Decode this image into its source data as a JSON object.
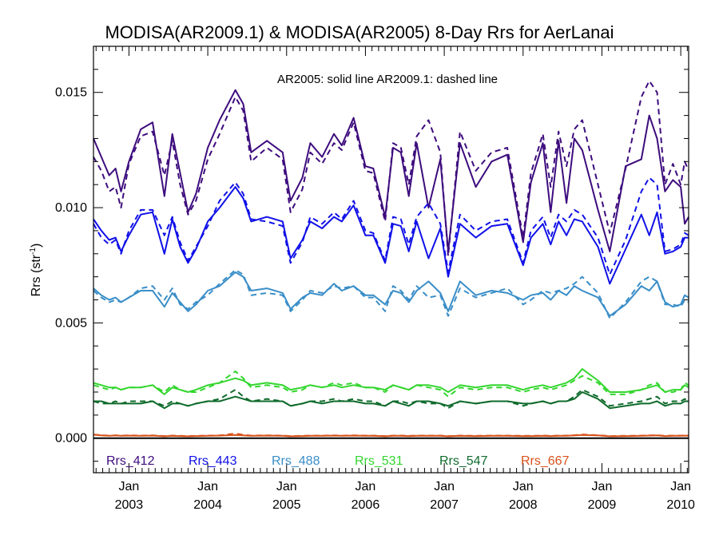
{
  "chart_data": {
    "type": "line",
    "title": "MODISA(AR2009.1) & MODISA(AR2005) 8-Day Rrs for AerLanai",
    "ylabel": "Rrs (str",
    "ylabel_sup": "-1",
    "ylabel_close": ")",
    "annotation": "AR2005: solid line   AR2009.1: dashed line",
    "xlim": [
      2002.55,
      2010.1
    ],
    "ylim": [
      -0.0015,
      0.017
    ],
    "yticks": [
      0.0,
      0.005,
      0.01,
      0.015
    ],
    "ytick_labels": [
      "0.000",
      "0.005",
      "0.010",
      "0.015"
    ],
    "xticks": [
      {
        "value": 2003.0,
        "month": "Jan",
        "year": "2003"
      },
      {
        "value": 2004.0,
        "month": "Jan",
        "year": "2004"
      },
      {
        "value": 2005.0,
        "month": "Jan",
        "year": "2005"
      },
      {
        "value": 2006.0,
        "month": "Jan",
        "year": "2006"
      },
      {
        "value": 2007.0,
        "month": "Jan",
        "year": "2007"
      },
      {
        "value": 2008.0,
        "month": "Jan",
        "year": "2008"
      },
      {
        "value": 2009.0,
        "month": "Jan",
        "year": "2009"
      },
      {
        "value": 2010.0,
        "month": "Jan",
        "year": "2010"
      }
    ],
    "x": [
      2002.55,
      2002.65,
      2002.75,
      2002.83,
      2002.9,
      2003.0,
      2003.15,
      2003.3,
      2003.45,
      2003.55,
      2003.65,
      2003.75,
      2003.85,
      2004.0,
      2004.15,
      2004.35,
      2004.45,
      2004.55,
      2004.75,
      2004.95,
      2005.05,
      2005.2,
      2005.3,
      2005.45,
      2005.6,
      2005.7,
      2005.85,
      2006.0,
      2006.1,
      2006.25,
      2006.35,
      2006.45,
      2006.55,
      2006.65,
      2006.8,
      2006.95,
      2007.05,
      2007.2,
      2007.4,
      2007.6,
      2007.8,
      2008.0,
      2008.1,
      2008.25,
      2008.35,
      2008.45,
      2008.55,
      2008.65,
      2008.75,
      2008.95,
      2009.1,
      2009.3,
      2009.5,
      2009.6,
      2009.7,
      2009.8,
      2009.9,
      2010.0,
      2010.05,
      2010.1
    ],
    "series": [
      {
        "name": "Rrs_412",
        "color": "#3d0c7d",
        "solid": [
          0.013,
          0.0122,
          0.0114,
          0.0117,
          0.0107,
          0.012,
          0.0134,
          0.0137,
          0.0105,
          0.0132,
          0.0115,
          0.0098,
          0.0106,
          0.0126,
          0.0138,
          0.0151,
          0.0145,
          0.0124,
          0.0129,
          0.0124,
          0.0103,
          0.0113,
          0.0128,
          0.0122,
          0.0132,
          0.0127,
          0.0139,
          0.0118,
          0.0117,
          0.0096,
          0.0126,
          0.0124,
          0.0105,
          0.0128,
          0.01,
          0.0121,
          0.0081,
          0.0128,
          0.0109,
          0.012,
          0.0123,
          0.0085,
          0.0111,
          0.0128,
          0.0098,
          0.0129,
          0.0102,
          0.013,
          0.0125,
          0.0099,
          0.0081,
          0.0118,
          0.0121,
          0.014,
          0.013,
          0.0107,
          0.0112,
          0.0109,
          0.0093,
          0.0096
        ],
        "dashed": [
          0.0122,
          0.0116,
          0.0107,
          0.0109,
          0.01,
          0.0119,
          0.0131,
          0.0133,
          0.0114,
          0.0129,
          0.011,
          0.0097,
          0.0103,
          0.0121,
          0.0132,
          0.0148,
          0.0142,
          0.012,
          0.0126,
          0.0121,
          0.0098,
          0.0108,
          0.0124,
          0.0119,
          0.0128,
          0.0125,
          0.0137,
          0.0116,
          0.0115,
          0.0094,
          0.0128,
          0.0126,
          0.011,
          0.0131,
          0.0138,
          0.0124,
          0.0079,
          0.0133,
          0.0116,
          0.0124,
          0.0126,
          0.0087,
          0.0115,
          0.0132,
          0.0109,
          0.0133,
          0.0118,
          0.0134,
          0.0138,
          0.011,
          0.0089,
          0.0117,
          0.0148,
          0.0155,
          0.015,
          0.011,
          0.0119,
          0.011,
          0.012,
          0.0116
        ]
      },
      {
        "name": "Rrs_443",
        "color": "#1010e8",
        "solid": [
          0.0095,
          0.009,
          0.0086,
          0.0087,
          0.0081,
          0.0088,
          0.0097,
          0.0098,
          0.008,
          0.0095,
          0.0083,
          0.0076,
          0.0082,
          0.0094,
          0.01,
          0.0109,
          0.0104,
          0.0094,
          0.0096,
          0.0094,
          0.0078,
          0.0086,
          0.0094,
          0.0091,
          0.0096,
          0.0094,
          0.0101,
          0.0088,
          0.0088,
          0.0076,
          0.0093,
          0.0092,
          0.0081,
          0.0094,
          0.0078,
          0.0091,
          0.007,
          0.0093,
          0.0087,
          0.0092,
          0.0093,
          0.0075,
          0.0087,
          0.0093,
          0.0084,
          0.0094,
          0.0088,
          0.0095,
          0.0094,
          0.0083,
          0.0067,
          0.0082,
          0.0097,
          0.0088,
          0.0098,
          0.008,
          0.0081,
          0.0083,
          0.0087,
          0.0087
        ],
        "dashed": [
          0.0093,
          0.0087,
          0.0084,
          0.0086,
          0.008,
          0.009,
          0.0099,
          0.0099,
          0.0088,
          0.0096,
          0.0085,
          0.0077,
          0.0083,
          0.0092,
          0.0103,
          0.0111,
          0.0106,
          0.0095,
          0.0094,
          0.0092,
          0.0076,
          0.0085,
          0.0096,
          0.0093,
          0.0098,
          0.0095,
          0.0103,
          0.009,
          0.0089,
          0.0077,
          0.0096,
          0.0095,
          0.0084,
          0.0096,
          0.0102,
          0.0093,
          0.0072,
          0.0097,
          0.009,
          0.0094,
          0.0095,
          0.0076,
          0.009,
          0.0096,
          0.0087,
          0.0097,
          0.0094,
          0.0099,
          0.0097,
          0.0087,
          0.0071,
          0.0086,
          0.0107,
          0.0113,
          0.011,
          0.0081,
          0.0082,
          0.0084,
          0.0089,
          0.0088
        ]
      },
      {
        "name": "Rrs_488",
        "color": "#3a8ec8",
        "solid": [
          0.0065,
          0.0062,
          0.006,
          0.0061,
          0.0059,
          0.0061,
          0.0064,
          0.0064,
          0.0057,
          0.0063,
          0.0059,
          0.0055,
          0.0058,
          0.0064,
          0.0066,
          0.0072,
          0.007,
          0.0064,
          0.0065,
          0.0063,
          0.0056,
          0.0061,
          0.0063,
          0.0062,
          0.0067,
          0.0064,
          0.0066,
          0.0062,
          0.0062,
          0.0058,
          0.0064,
          0.0063,
          0.0059,
          0.0064,
          0.0068,
          0.0063,
          0.0055,
          0.0068,
          0.0062,
          0.0064,
          0.0063,
          0.006,
          0.0062,
          0.0063,
          0.006,
          0.0064,
          0.0062,
          0.0066,
          0.0064,
          0.0061,
          0.0053,
          0.0058,
          0.0066,
          0.0064,
          0.0068,
          0.0059,
          0.0057,
          0.0058,
          0.0062,
          0.0061
        ],
        "dashed": [
          0.0064,
          0.0061,
          0.0059,
          0.006,
          0.0059,
          0.0061,
          0.0065,
          0.0066,
          0.006,
          0.0065,
          0.0058,
          0.0056,
          0.0059,
          0.0062,
          0.0067,
          0.0073,
          0.0071,
          0.0062,
          0.0063,
          0.0062,
          0.0055,
          0.006,
          0.0064,
          0.0063,
          0.0066,
          0.0065,
          0.0066,
          0.0061,
          0.0061,
          0.0055,
          0.0066,
          0.0064,
          0.006,
          0.0066,
          0.0061,
          0.0062,
          0.0053,
          0.0065,
          0.0061,
          0.0063,
          0.0065,
          0.0058,
          0.006,
          0.0064,
          0.0063,
          0.0064,
          0.0065,
          0.0067,
          0.007,
          0.0063,
          0.0052,
          0.0059,
          0.0068,
          0.007,
          0.0068,
          0.0058,
          0.0058,
          0.0057,
          0.006,
          0.0059
        ]
      },
      {
        "name": "Rrs_531",
        "color": "#33d62e",
        "solid": [
          0.0024,
          0.0023,
          0.0022,
          0.0022,
          0.0021,
          0.0022,
          0.0022,
          0.0023,
          0.0019,
          0.0022,
          0.0021,
          0.002,
          0.0021,
          0.0023,
          0.0024,
          0.0026,
          0.0025,
          0.0023,
          0.0024,
          0.0023,
          0.0021,
          0.0022,
          0.0023,
          0.0022,
          0.0023,
          0.0022,
          0.0023,
          0.0022,
          0.0022,
          0.0021,
          0.0023,
          0.0022,
          0.0021,
          0.0023,
          0.0023,
          0.0022,
          0.002,
          0.0023,
          0.0022,
          0.0023,
          0.0023,
          0.0021,
          0.0022,
          0.0023,
          0.0022,
          0.0023,
          0.0024,
          0.0026,
          0.003,
          0.0025,
          0.002,
          0.002,
          0.0021,
          0.0022,
          0.0023,
          0.002,
          0.0021,
          0.0021,
          0.0023,
          0.0022
        ],
        "dashed": [
          0.0023,
          0.0022,
          0.0021,
          0.0022,
          0.0021,
          0.0022,
          0.0022,
          0.0023,
          0.002,
          0.0023,
          0.0021,
          0.002,
          0.002,
          0.0022,
          0.0024,
          0.0029,
          0.0026,
          0.0022,
          0.0023,
          0.0022,
          0.002,
          0.0021,
          0.0023,
          0.0022,
          0.0024,
          0.0023,
          0.0024,
          0.0022,
          0.0022,
          0.002,
          0.0023,
          0.0022,
          0.0021,
          0.0023,
          0.0022,
          0.0021,
          0.0018,
          0.0022,
          0.0021,
          0.0022,
          0.0022,
          0.002,
          0.0021,
          0.0022,
          0.0021,
          0.0022,
          0.0023,
          0.0025,
          0.0027,
          0.0024,
          0.0019,
          0.0019,
          0.0021,
          0.0023,
          0.0024,
          0.002,
          0.002,
          0.0021,
          0.0024,
          0.0023
        ]
      },
      {
        "name": "Rrs_547",
        "color": "#0f6b2c",
        "solid": [
          0.0016,
          0.0016,
          0.0015,
          0.0015,
          0.0015,
          0.0015,
          0.0015,
          0.0016,
          0.0013,
          0.0015,
          0.0015,
          0.0014,
          0.0015,
          0.0016,
          0.0016,
          0.0018,
          0.0017,
          0.0016,
          0.0016,
          0.0016,
          0.0014,
          0.0015,
          0.0016,
          0.0015,
          0.0016,
          0.0016,
          0.0016,
          0.0015,
          0.0015,
          0.0014,
          0.0016,
          0.0015,
          0.0014,
          0.0016,
          0.0016,
          0.0015,
          0.0014,
          0.0016,
          0.0015,
          0.0016,
          0.0016,
          0.0015,
          0.0015,
          0.0016,
          0.0015,
          0.0016,
          0.0016,
          0.0017,
          0.002,
          0.0017,
          0.0013,
          0.0014,
          0.0015,
          0.0015,
          0.0016,
          0.0014,
          0.0015,
          0.0015,
          0.0016,
          0.0016
        ],
        "dashed": [
          0.0016,
          0.0015,
          0.0015,
          0.0016,
          0.0015,
          0.0016,
          0.0016,
          0.0016,
          0.0014,
          0.0016,
          0.0015,
          0.0014,
          0.0015,
          0.0016,
          0.0017,
          0.0021,
          0.0018,
          0.0016,
          0.0017,
          0.0016,
          0.0014,
          0.0015,
          0.0016,
          0.0016,
          0.0017,
          0.0016,
          0.0017,
          0.0016,
          0.0016,
          0.0014,
          0.0016,
          0.0016,
          0.0015,
          0.0016,
          0.0015,
          0.0015,
          0.0013,
          0.0016,
          0.0015,
          0.0016,
          0.0016,
          0.0014,
          0.0015,
          0.0016,
          0.0015,
          0.0016,
          0.0016,
          0.0018,
          0.0021,
          0.0018,
          0.0014,
          0.0015,
          0.0016,
          0.0017,
          0.0018,
          0.0015,
          0.0016,
          0.0016,
          0.0017,
          0.0016
        ]
      },
      {
        "name": "Rrs_667",
        "color": "#d8521a",
        "solid": [
          0.00015,
          0.00012,
          0.0001,
          0.00012,
          0.0001,
          0.00011,
          0.0001,
          0.00011,
          8e-05,
          0.0001,
          9e-05,
          8e-05,
          9e-05,
          0.0001,
          0.00011,
          0.00014,
          0.00012,
          0.0001,
          0.00011,
          0.0001,
          8e-05,
          9e-05,
          0.0001,
          0.0001,
          0.00011,
          0.0001,
          0.00011,
          0.0001,
          0.0001,
          8e-05,
          0.0001,
          0.0001,
          9e-05,
          0.0001,
          0.0001,
          0.0001,
          8e-05,
          0.0001,
          9e-05,
          0.0001,
          0.0001,
          9e-05,
          9e-05,
          0.0001,
          9e-05,
          0.0001,
          0.0001,
          0.00012,
          0.00014,
          0.00012,
          8e-05,
          9e-05,
          0.0001,
          0.00011,
          0.00012,
          9e-05,
          0.0001,
          0.0001,
          0.00011,
          0.0001
        ],
        "dashed": [
          0.00016,
          0.00013,
          0.00011,
          0.00012,
          0.00011,
          0.00012,
          0.00011,
          0.00012,
          9e-05,
          0.00011,
          0.0001,
          9e-05,
          0.0001,
          0.00011,
          0.00012,
          0.0002,
          0.00015,
          0.00011,
          0.00012,
          0.00011,
          9e-05,
          0.0001,
          0.00011,
          0.00011,
          0.00012,
          0.00011,
          0.00012,
          0.00011,
          0.00011,
          9e-05,
          0.00011,
          0.00011,
          0.0001,
          0.00011,
          0.00011,
          0.00011,
          9e-05,
          0.00011,
          0.0001,
          0.00011,
          0.00011,
          0.0001,
          0.0001,
          0.00011,
          0.0001,
          0.00011,
          0.00011,
          0.00013,
          0.00016,
          0.00013,
          9e-05,
          0.0001,
          0.00011,
          0.00012,
          0.00013,
          0.0001,
          0.00011,
          0.00011,
          0.00012,
          0.00011
        ]
      }
    ],
    "zero_line": 0.0,
    "grid": false,
    "legend_placement": "bottom-inside"
  }
}
